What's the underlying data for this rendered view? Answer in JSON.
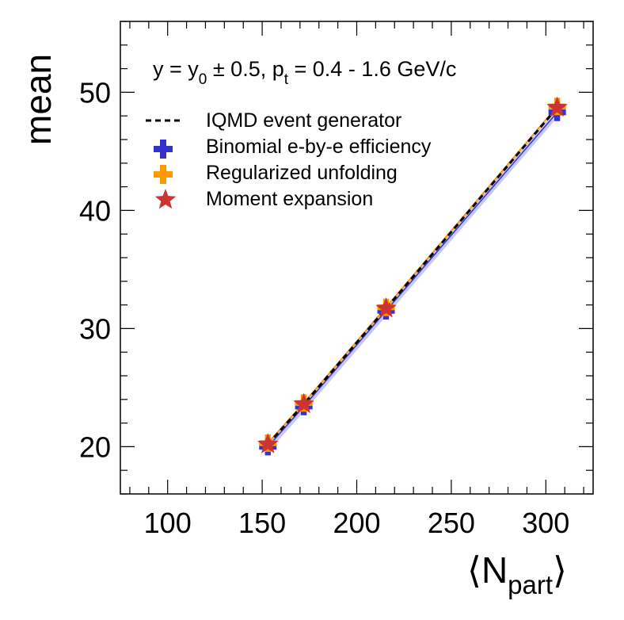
{
  "chart_data": {
    "type": "scatter",
    "title_annotation": {
      "prefix": "y = y",
      "sub0": "0",
      "mid": " ± 0.5,  p",
      "subt": "t",
      "suffix": " = 0.4 - 1.6 GeV/c"
    },
    "xlabel": {
      "main": "⟨N",
      "sub": "part",
      "close": "⟩"
    },
    "ylabel": "mean",
    "xlim": [
      75,
      325
    ],
    "ylim": [
      16,
      56
    ],
    "x_ticks": [
      100,
      150,
      200,
      250,
      300
    ],
    "y_ticks": [
      20,
      30,
      40,
      50
    ],
    "x_tick_labels": [
      "100",
      "150",
      "200",
      "250",
      "300"
    ],
    "y_tick_labels": [
      "20",
      "30",
      "40",
      "50"
    ],
    "legend_position": "top-left",
    "colors": {
      "generator": "#000000",
      "binomial": "#3333cc",
      "binomial_band": "#9999ee",
      "unfolding": "#ff9900",
      "moment": "#cc3333"
    },
    "series": [
      {
        "name": "IQMD event generator",
        "style": "dashed-line",
        "x": [
          153,
          172,
          215.5,
          306
        ],
        "y": [
          20.2,
          23.6,
          31.7,
          48.7
        ]
      },
      {
        "name": "Binomial e-by-e efficiency",
        "style": "cross",
        "x": [
          153,
          172,
          215.5,
          306
        ],
        "y": [
          20.0,
          23.4,
          31.5,
          48.3
        ]
      },
      {
        "name": "Regularized unfolding",
        "style": "cross",
        "x": [
          153,
          172,
          215.5,
          306
        ],
        "y": [
          20.3,
          23.7,
          31.8,
          48.8
        ]
      },
      {
        "name": "Moment expansion",
        "style": "star",
        "x": [
          153,
          172,
          215.5,
          306
        ],
        "y": [
          20.2,
          23.6,
          31.7,
          48.7
        ]
      }
    ]
  }
}
